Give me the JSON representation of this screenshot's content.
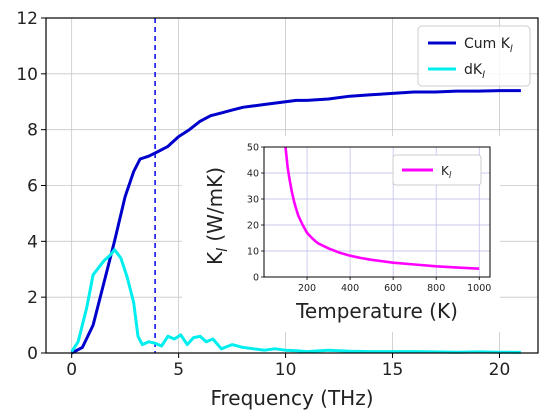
{
  "chart_data": [
    {
      "type": "line",
      "xlabel": "Frequency (THz)",
      "ylabel": "",
      "xlim": [
        -1.2,
        21.8
      ],
      "ylim": [
        0,
        12
      ],
      "xticks": [
        "0",
        "5",
        "10",
        "15",
        "20"
      ],
      "yticks": [
        "0",
        "2",
        "4",
        "6",
        "8",
        "10",
        "12"
      ],
      "grid": true,
      "legend": "top-right",
      "vline_x": 3.9,
      "series": [
        {
          "name": "Cum K",
          "name_sub": "l",
          "color": "#0000cc",
          "x": [
            0,
            0.5,
            1.0,
            1.5,
            2.0,
            2.5,
            2.9,
            3.2,
            3.6,
            4.0,
            4.5,
            5.0,
            5.5,
            6.0,
            6.5,
            7.0,
            7.5,
            8.0,
            8.5,
            9.0,
            9.5,
            10.0,
            10.5,
            11.0,
            12.0,
            13.0,
            14.0,
            15.0,
            16.0,
            17.0,
            18.0,
            19.0,
            20.0,
            21.0
          ],
          "y": [
            0,
            0.2,
            1.0,
            2.5,
            4.0,
            5.6,
            6.5,
            6.95,
            7.05,
            7.2,
            7.4,
            7.75,
            8.0,
            8.3,
            8.5,
            8.6,
            8.7,
            8.8,
            8.85,
            8.9,
            8.95,
            9.0,
            9.05,
            9.05,
            9.1,
            9.2,
            9.25,
            9.3,
            9.35,
            9.35,
            9.38,
            9.38,
            9.4,
            9.4
          ]
        },
        {
          "name": "dK",
          "name_sub": "l",
          "color": "#00eeee",
          "x": [
            0,
            0.3,
            0.7,
            1.0,
            1.5,
            1.8,
            2.0,
            2.3,
            2.6,
            2.9,
            3.1,
            3.3,
            3.6,
            3.9,
            4.2,
            4.5,
            4.8,
            5.1,
            5.4,
            5.7,
            6.0,
            6.3,
            6.6,
            7.0,
            7.5,
            8.0,
            8.5,
            9.0,
            9.5,
            10.0,
            10.5,
            11.0,
            12.0,
            13.0,
            14.0,
            15.0,
            16.0,
            17.0,
            18.0,
            19.0,
            20.0,
            21.0
          ],
          "y": [
            0.05,
            0.4,
            1.6,
            2.8,
            3.3,
            3.5,
            3.7,
            3.4,
            2.7,
            1.8,
            0.6,
            0.3,
            0.4,
            0.35,
            0.25,
            0.6,
            0.5,
            0.65,
            0.3,
            0.55,
            0.6,
            0.4,
            0.5,
            0.15,
            0.3,
            0.2,
            0.15,
            0.1,
            0.15,
            0.1,
            0.08,
            0.05,
            0.1,
            0.06,
            0.05,
            0.05,
            0.05,
            0.04,
            0.03,
            0.04,
            0.03,
            0.02
          ]
        }
      ]
    },
    {
      "type": "line",
      "inset": true,
      "xlabel": "Temperature (K)",
      "ylabel": "K",
      "ylabel_sub": "l",
      "ylabel_units": " (W/mK)",
      "xlim": [
        0,
        1050
      ],
      "ylim": [
        0,
        50
      ],
      "xticks": [
        "200",
        "400",
        "600",
        "800",
        "1000"
      ],
      "yticks": [
        "0",
        "10",
        "20",
        "30",
        "40",
        "50"
      ],
      "grid": true,
      "legend": "top-right",
      "series": [
        {
          "name": "K",
          "name_sub": "l",
          "color": "#ff00ff",
          "x": [
            100,
            110,
            120,
            130,
            140,
            150,
            160,
            180,
            200,
            225,
            250,
            300,
            350,
            400,
            450,
            500,
            600,
            700,
            800,
            900,
            1000
          ],
          "y": [
            50.0,
            42.0,
            37.0,
            32.5,
            29.0,
            26.0,
            23.5,
            20.0,
            17.0,
            14.8,
            13.0,
            11.0,
            9.4,
            8.2,
            7.3,
            6.6,
            5.5,
            4.8,
            4.1,
            3.6,
            3.2
          ]
        }
      ]
    }
  ]
}
